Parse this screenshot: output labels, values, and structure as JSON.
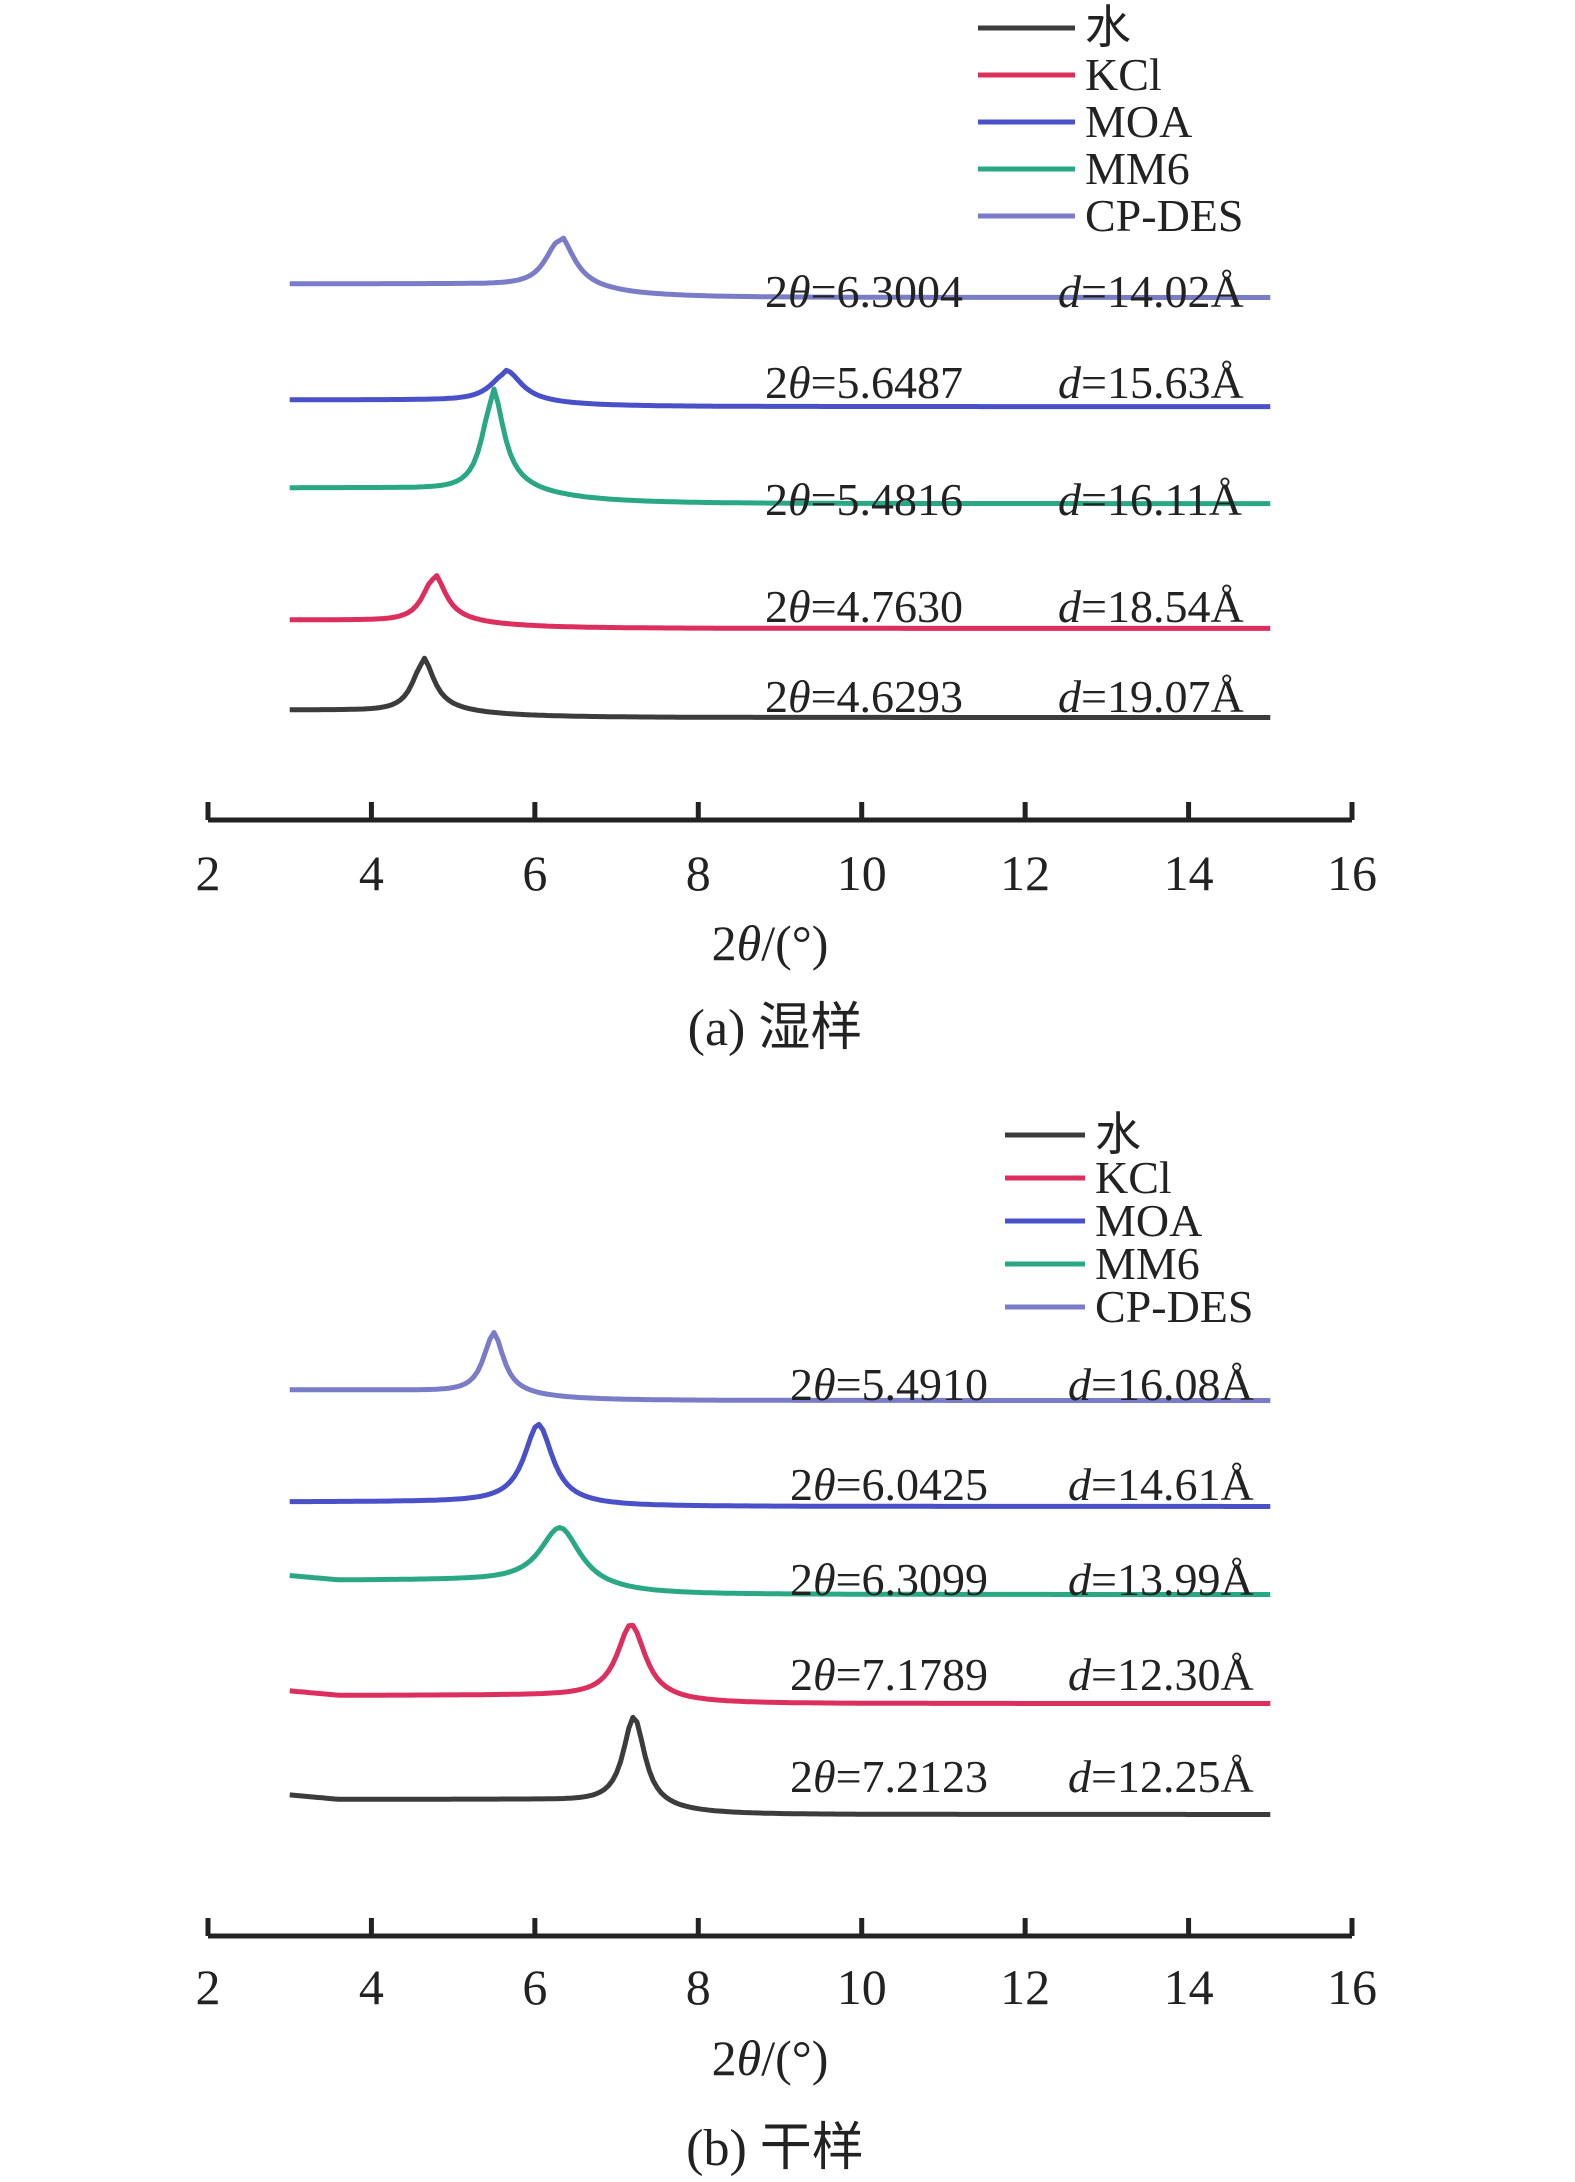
{
  "colors": {
    "水": "#3c3c3c",
    "KCl": "#dc2f5e",
    "MOA": "#4950c8",
    "MM6": "#2aa784",
    "CP-DES": "#7a7cc8"
  },
  "chart_data": [
    {
      "type": "line",
      "caption": "(a) 湿样",
      "xlabel_pre": "2",
      "xlabel_theta": "θ",
      "xlabel_post": "/(°)",
      "xlim": [
        2,
        16
      ],
      "xticks": [
        2,
        4,
        6,
        8,
        10,
        12,
        14,
        16
      ],
      "yaxis_shown": false,
      "legend": {
        "position": "top-right",
        "entries": [
          "水",
          "KCl",
          "MOA",
          "MM6",
          "CP-DES"
        ]
      },
      "series": [
        {
          "name": "水",
          "peak_2theta": 4.6293,
          "baseline_left": 0.0,
          "baseline_right": -0.25,
          "offset": 0,
          "peak_height": 0.5,
          "width": 0.32,
          "tail": 0.22,
          "annotation": {
            "two_theta": "4.6293",
            "d": "19.07Å"
          }
        },
        {
          "name": "KCl",
          "peak_2theta": 4.763,
          "baseline_left": 0.0,
          "baseline_right": -0.28,
          "offset": 1,
          "peak_height": 0.45,
          "width": 0.34,
          "tail": 0.2,
          "annotation": {
            "two_theta": "4.7630",
            "d": "18.54Å"
          }
        },
        {
          "name": "MM6",
          "peak_2theta": 5.4816,
          "baseline_left": 0.0,
          "baseline_right": -0.52,
          "offset": 2.2,
          "peak_height": 0.95,
          "width": 0.32,
          "tail": 0.45,
          "annotation": {
            "two_theta": "5.4816",
            "d": "16.11Å"
          }
        },
        {
          "name": "MOA",
          "peak_2theta": 5.6487,
          "baseline_left": 0.0,
          "baseline_right": -0.22,
          "offset": 3.2,
          "peak_height": 0.3,
          "width": 0.45,
          "tail": 0.1,
          "annotation": {
            "two_theta": "5.6487",
            "d": "15.63Å"
          }
        },
        {
          "name": "CP-DES",
          "peak_2theta": 6.3004,
          "baseline_left": 0.0,
          "baseline_right": -0.45,
          "offset": 4.15,
          "peak_height": 0.5,
          "width": 0.42,
          "tail": 0.2,
          "annotation": {
            "two_theta": "6.3004",
            "d": "14.02Å"
          }
        }
      ]
    },
    {
      "type": "line",
      "caption": "(b) 干样",
      "xlabel_pre": "2",
      "xlabel_theta": "θ",
      "xlabel_post": "/(°)",
      "xlim": [
        2,
        16
      ],
      "xticks": [
        2,
        4,
        6,
        8,
        10,
        12,
        14,
        16
      ],
      "yaxis_shown": false,
      "legend": {
        "position": "top-right",
        "entries": [
          "水",
          "KCl",
          "MOA",
          "MM6",
          "CP-DES"
        ]
      },
      "series": [
        {
          "name": "水",
          "peak_2theta": 7.2123,
          "baseline_left": 0.35,
          "baseline_right": -0.15,
          "offset": 0,
          "peak_height": 0.9,
          "width": 0.32,
          "tail": 0.0,
          "annotation": {
            "two_theta": "7.2123",
            "d": "12.25Å"
          }
        },
        {
          "name": "KCl",
          "peak_2theta": 7.1789,
          "baseline_left": 0.15,
          "baseline_right": -0.12,
          "offset": 1.1,
          "peak_height": 0.75,
          "width": 0.42,
          "tail": 0.0,
          "annotation": {
            "two_theta": "7.1789",
            "d": "12.30Å"
          }
        },
        {
          "name": "MM6",
          "peak_2theta": 6.3099,
          "baseline_left": 0.25,
          "baseline_right": -0.22,
          "offset": 2.2,
          "peak_height": 0.6,
          "width": 0.6,
          "tail": 0.0,
          "annotation": {
            "two_theta": "6.3099",
            "d": "13.99Å"
          }
        },
        {
          "name": "MOA",
          "peak_2theta": 6.0425,
          "baseline_left": 0.0,
          "baseline_right": -0.15,
          "offset": 3.3,
          "peak_height": 0.8,
          "width": 0.42,
          "tail": 0.0,
          "annotation": {
            "two_theta": "6.0425",
            "d": "14.61Å"
          }
        },
        {
          "name": "CP-DES",
          "peak_2theta": 5.491,
          "baseline_left": 0.0,
          "baseline_right": -0.35,
          "offset": 4.4,
          "peak_height": 0.6,
          "width": 0.3,
          "tail": 0.1,
          "annotation": {
            "two_theta": "5.4910",
            "d": "16.08Å"
          }
        }
      ]
    }
  ]
}
